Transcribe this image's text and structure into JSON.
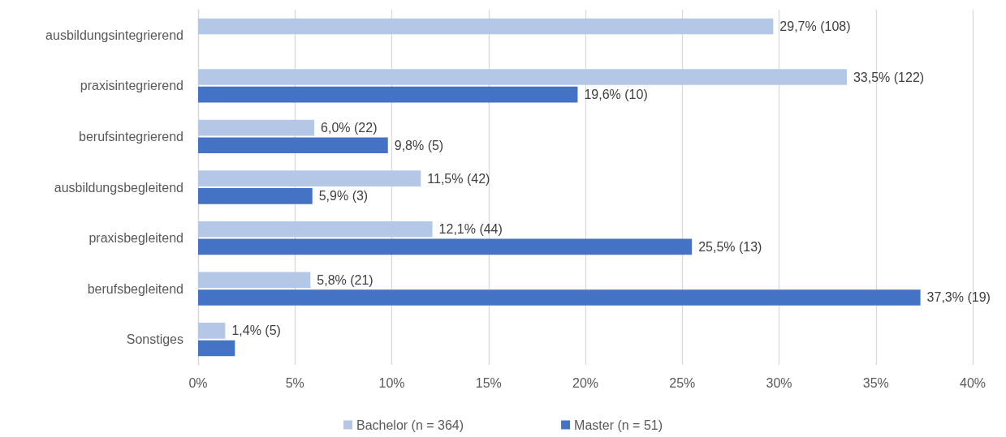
{
  "chart_data": {
    "type": "bar",
    "orientation": "horizontal",
    "categories": [
      "ausbildungsintegrierend",
      "praxisintegrierend",
      "berufsintegrierend",
      "ausbildungsbegleitend",
      "praxisbegleitend",
      "berufsbegleitend",
      "Sonstiges"
    ],
    "series": [
      {
        "name": "Bachelor (n = 364)",
        "color": "#b4c7e7",
        "values": [
          29.7,
          33.5,
          6.0,
          11.5,
          12.1,
          5.8,
          1.4
        ],
        "value_labels": [
          "29,7% (108)",
          "33,5% (122)",
          "6,0% (22)",
          "11,5% (42)",
          "12,1% (44)",
          "5,8% (21)",
          "1,4% (5)"
        ]
      },
      {
        "name": "Master (n = 51)",
        "color": "#4472c4",
        "values": [
          null,
          19.6,
          9.8,
          5.9,
          25.5,
          37.3,
          1.9
        ],
        "value_labels": [
          null,
          "19,6% (10)",
          "9,8% (5)",
          "5,9% (3)",
          "25,5% (13)",
          "37,3% (19)",
          null
        ]
      }
    ],
    "xlim": [
      0,
      40
    ],
    "xticks": [
      {
        "value": 0,
        "label": "0%"
      },
      {
        "value": 5,
        "label": "5%"
      },
      {
        "value": 10,
        "label": "10%"
      },
      {
        "value": 15,
        "label": "15%"
      },
      {
        "value": 20,
        "label": "20%"
      },
      {
        "value": 25,
        "label": "25%"
      },
      {
        "value": 30,
        "label": "30%"
      },
      {
        "value": 35,
        "label": "35%"
      },
      {
        "value": 40,
        "label": "40%"
      }
    ],
    "grid": "x",
    "legend": "bottom"
  }
}
